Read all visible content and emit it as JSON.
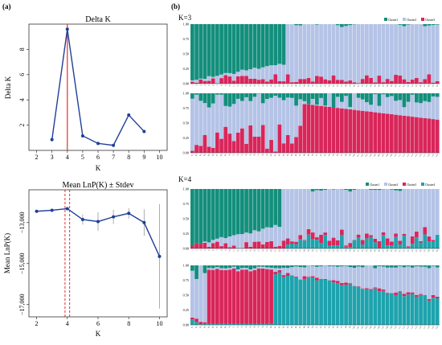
{
  "panel_labels": {
    "a": "(a)",
    "b": "(b)"
  },
  "palette": {
    "line": "#1f3f99",
    "k_marker": "#e0302a",
    "cluster1": "#138f7c",
    "cluster2": "#b4c3e6",
    "cluster3": "#d8265a",
    "cluster4": "#1ea3ad"
  },
  "chart_data": [
    {
      "type": "line",
      "title": "Delta K",
      "xlabel": "K",
      "ylabel": "Delta K",
      "x": [
        3,
        4,
        5,
        6,
        7,
        8,
        9
      ],
      "y": [
        0.85,
        9.6,
        1.15,
        0.55,
        0.4,
        2.8,
        1.5
      ],
      "xlim": [
        1.5,
        10.5
      ],
      "ylim": [
        0,
        10
      ],
      "xticks": [
        "2",
        "3",
        "4",
        "5",
        "6",
        "7",
        "8",
        "9",
        "10"
      ],
      "yticks": [
        "2",
        "4",
        "6",
        "8"
      ],
      "marker_line_at": 4
    },
    {
      "type": "line",
      "title": "Mean LnP(K) ± Stdev",
      "xlabel": "K",
      "ylabel": "Mean LnP(K)",
      "x": [
        2,
        3,
        4,
        5,
        6,
        7,
        8,
        9,
        10
      ],
      "y": [
        -12450,
        -12400,
        -12320,
        -12850,
        -12950,
        -12720,
        -12550,
        -13000,
        -14650
      ],
      "err": [
        20,
        20,
        20,
        250,
        450,
        350,
        250,
        650,
        2550
      ],
      "xlim": [
        1.5,
        10.5
      ],
      "ylim": [
        -17600,
        -11400
      ],
      "xticks": [
        "2",
        "4",
        "6",
        "8",
        "10"
      ],
      "yticks": [
        "−13,000",
        "−15,000",
        "−17,000"
      ],
      "marker_lines_at": [
        3.85,
        4.15
      ]
    },
    {
      "type": "bar",
      "stacked": true,
      "title": "K=3",
      "legend": [
        "Cluster1",
        "Cluster2",
        "Cluster3"
      ],
      "legend_position": "top-right",
      "yticks": [
        "0.00",
        "0.25",
        "0.50",
        "0.75",
        "1.00"
      ],
      "rows": 2,
      "bars_per_row": 60,
      "profile_row1": {
        "cluster1_start": 0.96,
        "cluster1_end": 0.68,
        "cluster1_until_bar": 23,
        "cluster1_after": 0.05,
        "cluster3_mean": 0.08
      },
      "profile_row2": {
        "cluster1_mean": 0.12,
        "cluster3_before_bar": 0.25,
        "cluster3_jump_at_bar": 27,
        "cluster3_after_start": 0.82,
        "cluster3_after_end": 0.55
      }
    },
    {
      "type": "bar",
      "stacked": true,
      "title": "K=4",
      "legend": [
        "Cluster1",
        "Cluster2",
        "Cluster3",
        "Cluster4"
      ],
      "legend_position": "top-right",
      "yticks": [
        "0.00",
        "0.25",
        "0.50",
        "0.75",
        "1.00"
      ],
      "rows": 2,
      "bars_per_row": 60,
      "profile_row1": {
        "cluster1_start": 0.97,
        "cluster1_end": 0.62,
        "cluster1_until_bar": 22,
        "cluster1_after": 0.05,
        "cluster3_mean": 0.07,
        "cluster4_mean": 0.12
      },
      "profile_row2": {
        "cluster3_block_from_bar": 4,
        "cluster3_block_to_bar": 19,
        "cluster3_block_level": 0.93,
        "cluster4_from_bar": 20,
        "cluster4_start": 0.9,
        "cluster4_end": 0.45
      }
    }
  ]
}
